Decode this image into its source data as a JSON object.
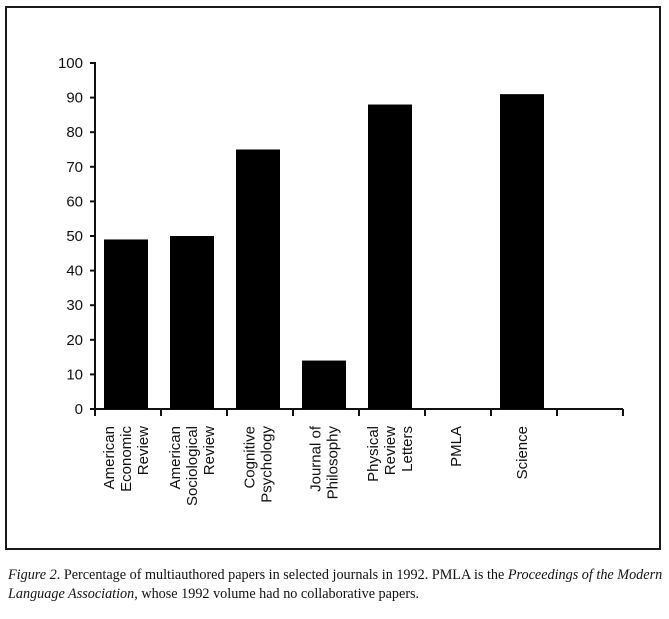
{
  "chart_data": {
    "type": "bar",
    "categories": [
      [
        "American",
        "Economic",
        "Review"
      ],
      [
        "American",
        "Sociological",
        "Review"
      ],
      [
        "Cognitive",
        "Psychology"
      ],
      [
        "Journal of",
        "Philosophy"
      ],
      [
        "Physical",
        "Review",
        "Letters"
      ],
      [
        "PMLA"
      ],
      [
        "Science"
      ]
    ],
    "values": [
      49,
      50,
      75,
      14,
      88,
      0,
      91
    ],
    "ylim": [
      0,
      100
    ],
    "yticks": [
      0,
      10,
      20,
      30,
      40,
      50,
      60,
      70,
      80,
      90,
      100
    ],
    "bar_color": "#000000",
    "grid": false,
    "legend": "none"
  },
  "caption": {
    "label": "Figure 2",
    "text_1": ". Percentage of multiauthored papers in selected journals in 1992. PMLA is the ",
    "italic_1": "Proceedings of the Modern Language Association",
    "text_2": ", whose 1992 volume had no collaborative papers."
  }
}
